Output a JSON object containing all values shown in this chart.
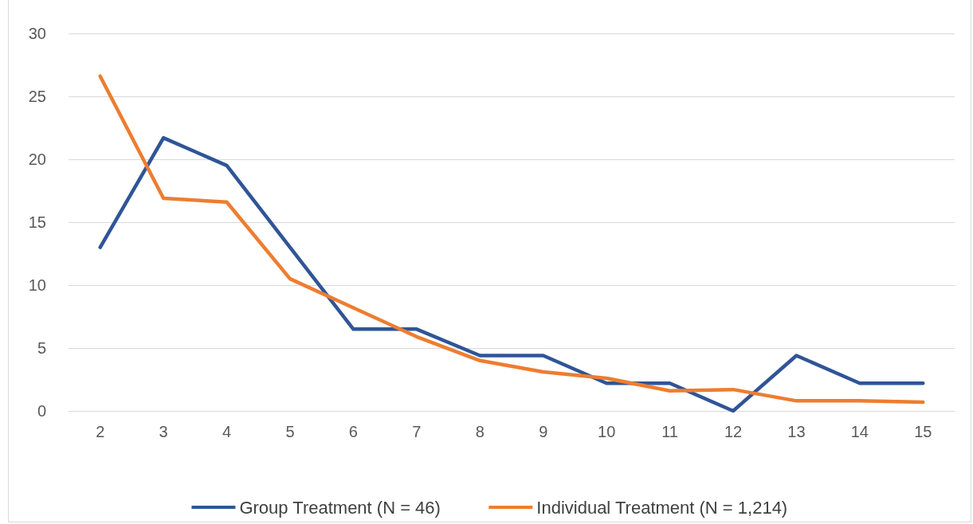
{
  "chart_data": {
    "type": "line",
    "categories": [
      "2",
      "3",
      "4",
      "5",
      "6",
      "7",
      "8",
      "9",
      "10",
      "11",
      "12",
      "13",
      "14",
      "15"
    ],
    "series": [
      {
        "name": "Group Treatment (N = 46)",
        "color": "#2f5597",
        "values": [
          13.0,
          21.7,
          19.5,
          13.0,
          6.5,
          6.5,
          4.4,
          4.4,
          2.2,
          2.2,
          0,
          4.4,
          2.2,
          2.2
        ]
      },
      {
        "name": "Individual Treatment (N = 1,214)",
        "color": "#ed7d31",
        "values": [
          26.6,
          16.9,
          16.6,
          10.5,
          8.2,
          5.9,
          4.0,
          3.1,
          2.6,
          1.6,
          1.7,
          0.8,
          0.8,
          0.7
        ]
      }
    ],
    "ylim": [
      0,
      30
    ],
    "yticks": [
      0,
      5,
      10,
      15,
      20,
      25,
      30
    ],
    "grid": "y",
    "legend": "bottom",
    "marker": "none",
    "line_style": "solid"
  }
}
